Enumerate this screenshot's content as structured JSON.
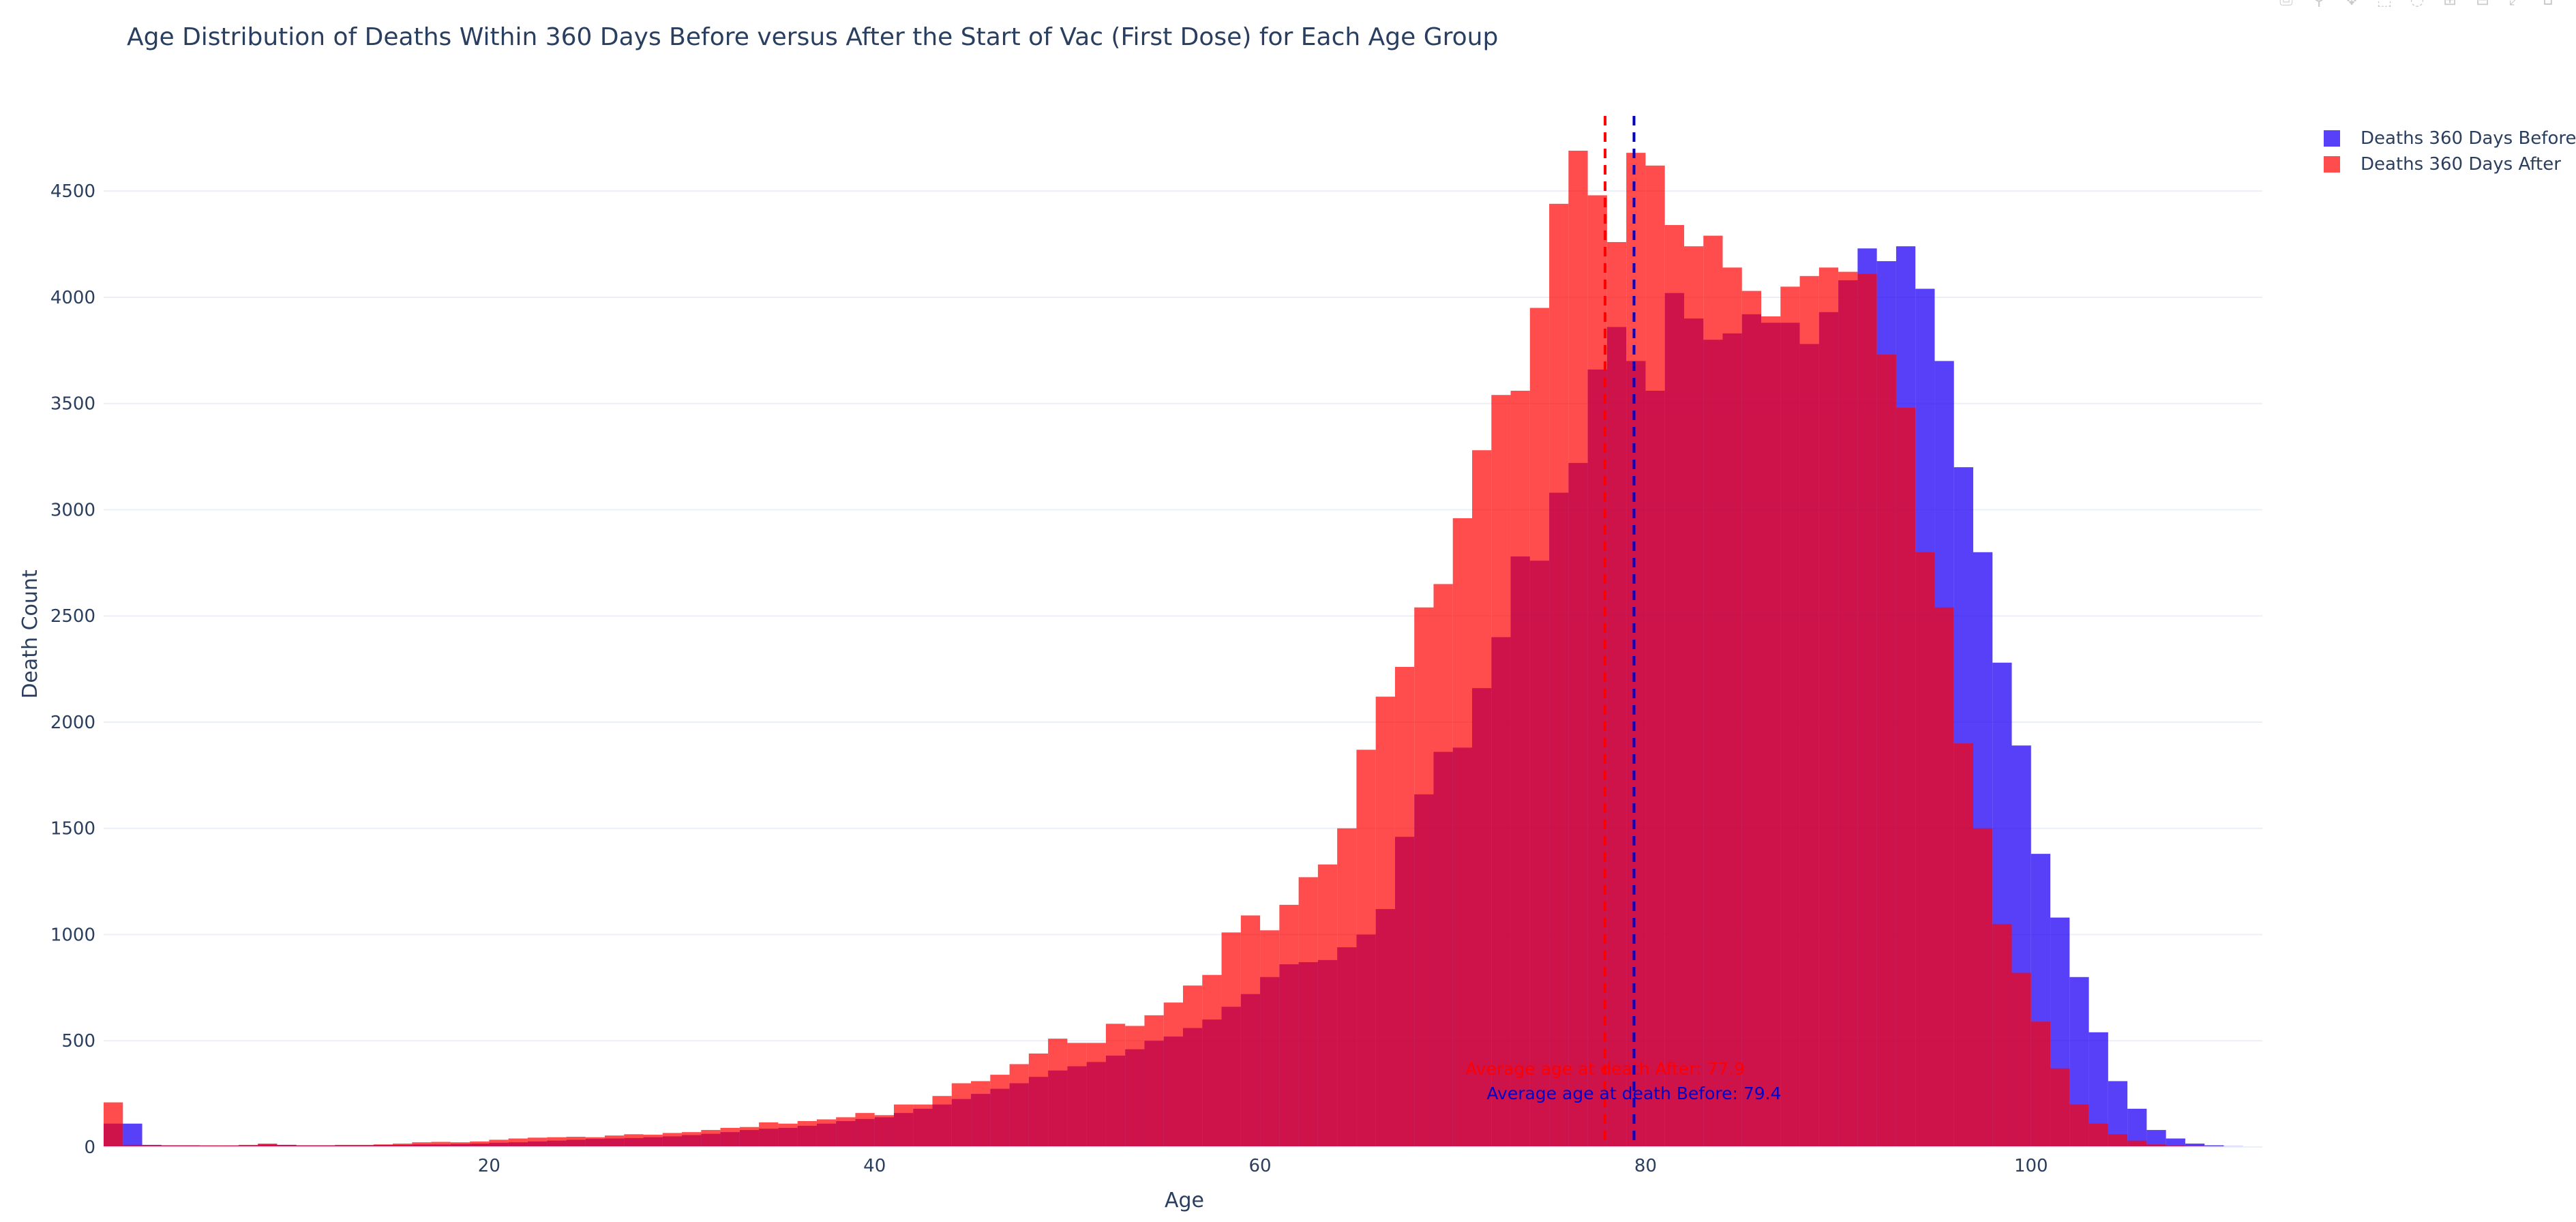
{
  "chart_data": {
    "type": "bar",
    "title": "Age Distribution of Deaths Within 360 Days Before versus After the Start of Vac (First Dose) for Each Age Group",
    "xlabel": "Age",
    "ylabel": "Death Count",
    "xlim": [
      0,
      112
    ],
    "ylim": [
      0,
      4950
    ],
    "x_ticks": [
      20,
      40,
      60,
      80,
      100
    ],
    "y_ticks": [
      0,
      500,
      1000,
      1500,
      2000,
      2500,
      3000,
      3500,
      4000,
      4500
    ],
    "grid": true,
    "legend_position": "top-right",
    "x": [
      0,
      1,
      2,
      3,
      4,
      5,
      6,
      7,
      8,
      9,
      10,
      11,
      12,
      13,
      14,
      15,
      16,
      17,
      18,
      19,
      20,
      21,
      22,
      23,
      24,
      25,
      26,
      27,
      28,
      29,
      30,
      31,
      32,
      33,
      34,
      35,
      36,
      37,
      38,
      39,
      40,
      41,
      42,
      43,
      44,
      45,
      46,
      47,
      48,
      49,
      50,
      51,
      52,
      53,
      54,
      55,
      56,
      57,
      58,
      59,
      60,
      61,
      62,
      63,
      64,
      65,
      66,
      67,
      68,
      69,
      70,
      71,
      72,
      73,
      74,
      75,
      76,
      77,
      78,
      79,
      80,
      81,
      82,
      83,
      84,
      85,
      86,
      87,
      88,
      89,
      90,
      91,
      92,
      93,
      94,
      95,
      96,
      97,
      98,
      99,
      100,
      101,
      102,
      103,
      104,
      105,
      106,
      107,
      108,
      109,
      110,
      111
    ],
    "series": [
      {
        "name": "Deaths 360 Days Before",
        "color": "#1f00f5",
        "opacity": 0.75,
        "values": [
          110,
          110,
          10,
          8,
          8,
          6,
          6,
          8,
          12,
          10,
          8,
          8,
          8,
          8,
          10,
          10,
          12,
          12,
          14,
          16,
          20,
          22,
          26,
          30,
          34,
          38,
          40,
          42,
          46,
          50,
          56,
          62,
          70,
          80,
          86,
          90,
          100,
          110,
          122,
          132,
          140,
          160,
          180,
          200,
          226,
          250,
          274,
          300,
          330,
          360,
          380,
          400,
          430,
          460,
          500,
          520,
          560,
          600,
          660,
          720,
          800,
          860,
          870,
          880,
          940,
          1000,
          1120,
          1460,
          1660,
          1860,
          1880,
          2160,
          2400,
          2780,
          2760,
          3080,
          3220,
          3660,
          3860,
          3700,
          3560,
          4020,
          3900,
          3800,
          3830,
          3920,
          3880,
          3880,
          3780,
          3930,
          4080,
          4230,
          4170,
          4240,
          4040,
          3700,
          3200,
          2800,
          2280,
          1890,
          1380,
          1080,
          800,
          540,
          310,
          180,
          80,
          40,
          16,
          8,
          4,
          2
        ],
        "avg_age_label": "Average age at death Before: 79.4",
        "avg_age": 79.4
      },
      {
        "name": "Deaths 360 Days After",
        "color": "#ff0000",
        "opacity": 0.7,
        "values": [
          210,
          10,
          8,
          8,
          8,
          8,
          8,
          10,
          16,
          10,
          8,
          8,
          10,
          10,
          12,
          16,
          22,
          24,
          22,
          26,
          34,
          40,
          44,
          46,
          48,
          46,
          54,
          60,
          58,
          66,
          70,
          80,
          90,
          94,
          116,
          110,
          122,
          130,
          140,
          160,
          150,
          200,
          200,
          240,
          300,
          310,
          340,
          390,
          440,
          510,
          490,
          490,
          580,
          570,
          620,
          680,
          760,
          810,
          1010,
          1090,
          1020,
          1140,
          1270,
          1330,
          1500,
          1870,
          2120,
          2260,
          2540,
          2650,
          2960,
          3280,
          3540,
          3560,
          3950,
          4440,
          4690,
          4480,
          4260,
          4680,
          4620,
          4340,
          4240,
          4290,
          4140,
          4030,
          3910,
          4050,
          4100,
          4140,
          4120,
          4110,
          3730,
          3480,
          2800,
          2540,
          1900,
          1500,
          1050,
          820,
          590,
          370,
          200,
          110,
          60,
          30,
          12,
          6,
          4,
          2,
          1,
          1
        ],
        "avg_age_label": "Average age at death After: 77.9",
        "avg_age": 77.9
      }
    ]
  }
}
